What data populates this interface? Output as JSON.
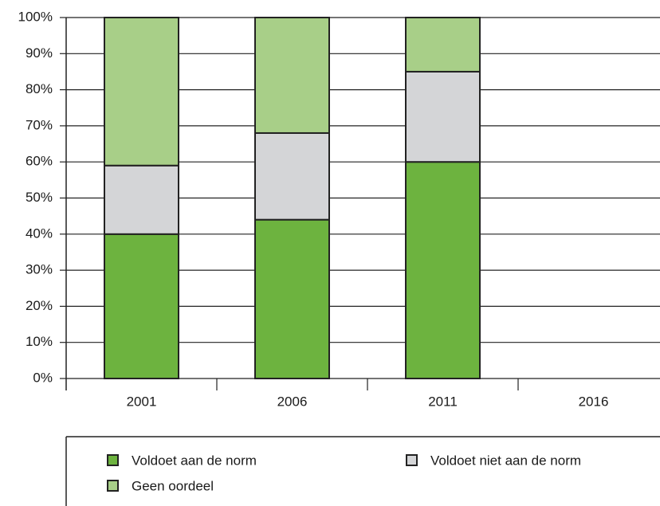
{
  "chart_data": {
    "type": "stacked_bar",
    "categories": [
      "2001",
      "2006",
      "2011",
      "2016"
    ],
    "series": [
      {
        "name": "Voldoet aan de norm",
        "color": "#6db33f",
        "values": [
          40,
          44,
          60,
          null
        ]
      },
      {
        "name": "Voldoet niet aan de norm",
        "color": "#d4d5d7",
        "values": [
          19,
          24,
          25,
          null
        ]
      },
      {
        "name": "Geen oordeel",
        "color": "#a8cf88",
        "values": [
          41,
          32,
          15,
          null
        ]
      }
    ],
    "ylim": [
      0,
      100
    ],
    "yticks": [
      {
        "value": 0,
        "label": "0%"
      },
      {
        "value": 10,
        "label": "10%"
      },
      {
        "value": 20,
        "label": "20%"
      },
      {
        "value": 30,
        "label": "30%"
      },
      {
        "value": 40,
        "label": "40%"
      },
      {
        "value": 50,
        "label": "50%"
      },
      {
        "value": 60,
        "label": "60%"
      },
      {
        "value": 70,
        "label": "70%"
      },
      {
        "value": 80,
        "label": "80%"
      },
      {
        "value": 90,
        "label": "90%"
      },
      {
        "value": 100,
        "label": "100%"
      }
    ],
    "grid": true
  }
}
